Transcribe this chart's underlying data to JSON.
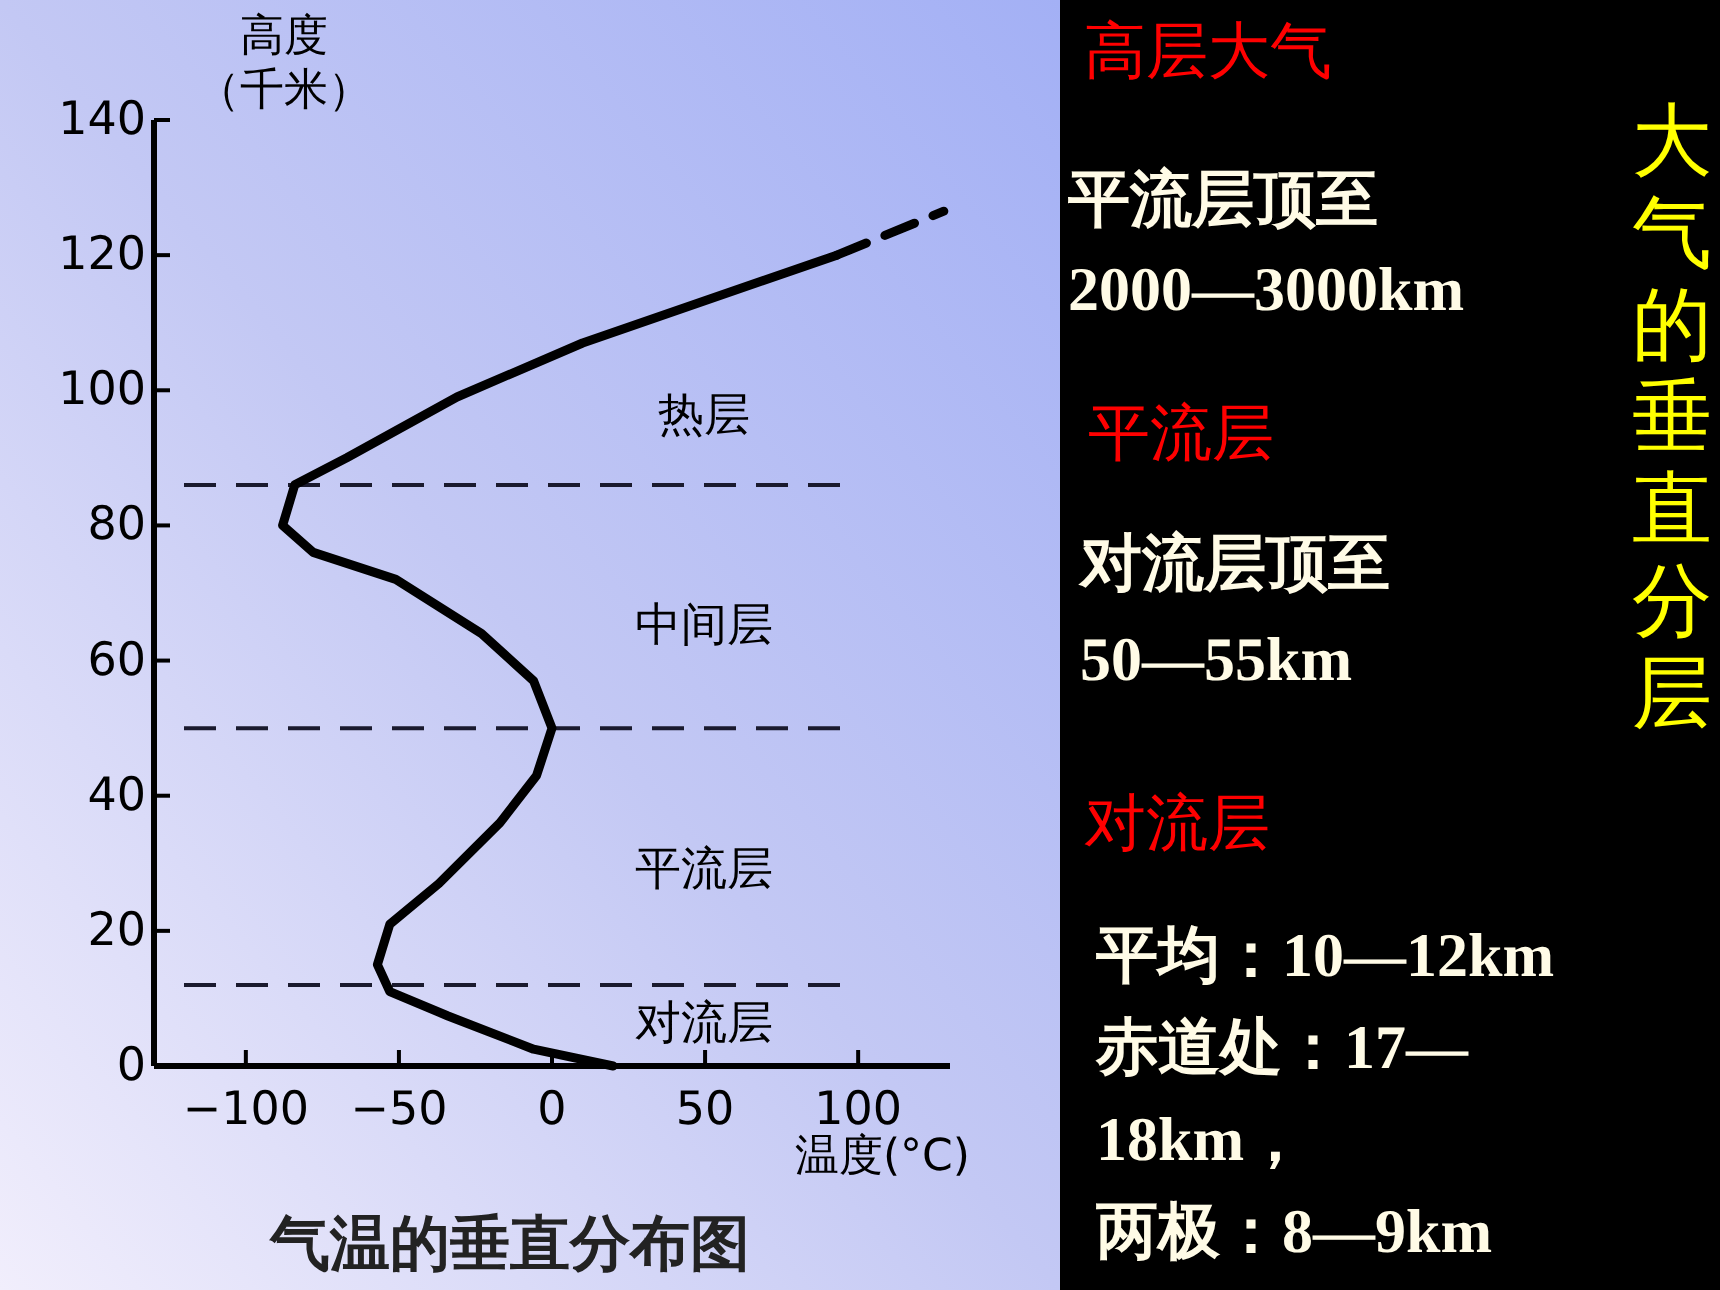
{
  "chart_data": [
    {
      "type": "line",
      "title": "气温的垂直分布图",
      "xlabel": "温度(°C)",
      "ylabel": "高度（千米）",
      "xlim": [
        -130,
        130
      ],
      "ylim": [
        0,
        140
      ],
      "xticks": [
        -100,
        -50,
        0,
        50,
        100
      ],
      "yticks": [
        0,
        20,
        40,
        60,
        80,
        100,
        120,
        140
      ],
      "series": [
        {
          "color": "#000000",
          "x": [
            20,
            -6,
            -34,
            -53,
            -57,
            -53,
            -37,
            -17,
            -5,
            0,
            -6,
            -23,
            -51,
            -78,
            -88,
            -84,
            -67,
            -31,
            10,
            93
          ],
          "values": [
            0,
            2.5,
            7.4,
            11,
            15,
            21,
            27,
            36,
            43,
            50,
            57,
            64,
            72,
            76,
            80,
            86,
            90,
            99,
            107,
            120
          ]
        },
        {
          "color": "#000000",
          "line_style": "dashed",
          "x": [
            93,
            128
          ],
          "values": [
            120,
            126.5
          ]
        }
      ],
      "ref_lines": [
        {
          "axis": "y",
          "value": 86,
          "color": "#1a1a2e",
          "line_style": "dashed"
        },
        {
          "axis": "y",
          "value": 50,
          "color": "#1a1a2e",
          "line_style": "dashed"
        },
        {
          "axis": "y",
          "value": 12,
          "color": "#1a1a2e",
          "line_style": "dashed"
        }
      ],
      "annotations": [
        "热层",
        "中间层",
        "平流层",
        "对流层"
      ]
    },
    {
      "type": "other",
      "title": "大气的垂直分层",
      "annotations": [
        "高层大气",
        "平流层顶至",
        "2000—3000km",
        "平流层",
        "对流层顶至",
        "50—55km",
        "对流层",
        "平均：10—12km",
        "赤道处：17—",
        "18km，",
        "两极：8—9km"
      ]
    }
  ]
}
